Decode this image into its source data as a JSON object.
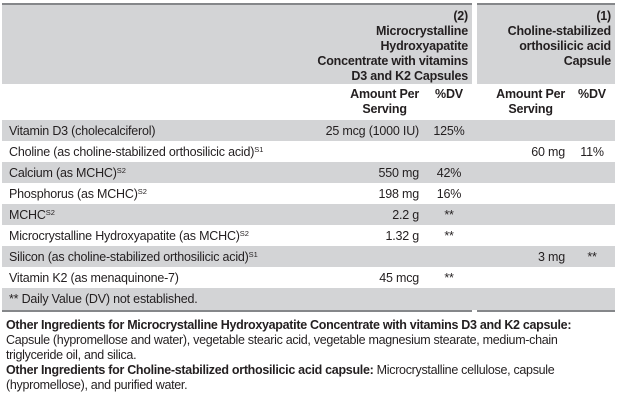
{
  "table": {
    "products": [
      {
        "lines": [
          "(2)",
          "Microcrystalline",
          "Hydroxyapatite",
          "Concentrate with vitamins",
          "D3 and K2 Capsules"
        ]
      },
      {
        "lines": [
          "(1)",
          "Choline-stabilized",
          "orthosilicic acid",
          "Capsule"
        ]
      }
    ],
    "column_headers": {
      "amount_top": "Amount Per",
      "amount_bottom": "Serving",
      "dv": "%DV"
    },
    "rows": [
      {
        "label": "Vitamin D3 (cholecalciferol)",
        "sup": "",
        "amount1": "25 mcg (1000 IU)",
        "dv1": "125%",
        "amount2": "",
        "dv2": ""
      },
      {
        "label": "Choline (as choline-stabilized orthosilicic acid)",
        "sup": "S1",
        "amount1": "",
        "dv1": "",
        "amount2": "60 mg",
        "dv2": "11%"
      },
      {
        "label": "Calcium (as MCHC)",
        "sup": "S2",
        "amount1": "550 mg",
        "dv1": "42%",
        "amount2": "",
        "dv2": ""
      },
      {
        "label": "Phosphorus (as MCHC)",
        "sup": "S2",
        "amount1": "198 mg",
        "dv1": "16%",
        "amount2": "",
        "dv2": ""
      },
      {
        "label": "MCHC",
        "sup": "S2",
        "amount1": "2.2 g",
        "dv1": "**",
        "amount2": "",
        "dv2": ""
      },
      {
        "label": "Microcrystalline Hydroxyapatite (as MCHC)",
        "sup": "S2",
        "amount1": "1.32 g",
        "dv1": "**",
        "amount2": "",
        "dv2": ""
      },
      {
        "label": "Silicon (as choline-stabilized orthosilicic acid)",
        "sup": "S1",
        "amount1": "",
        "dv1": "",
        "amount2": "3 mg",
        "dv2": "**"
      },
      {
        "label": "Vitamin K2 (as menaquinone-7)",
        "sup": "",
        "amount1": "45 mcg",
        "dv1": "**",
        "amount2": "",
        "dv2": ""
      }
    ],
    "footnote": "** Daily Value (DV) not established."
  },
  "other_ingredients": [
    {
      "lead": "Other Ingredients for Microcrystalline Hydroxyapatite Concentrate with vitamins D3 and K2 capsule:",
      "text": "Capsule (hypromellose and water), vegetable stearic acid, vegetable magnesium stearate, medium-chain triglyceride oil, and silica."
    },
    {
      "lead": "Other Ingredients for Choline-stabilized orthosilicic acid capsule:",
      "text": "Microcrystalline cellulose, capsule (hypromellose), and purified water."
    }
  ],
  "colors": {
    "row_shade": "#d3d4d6",
    "rule": "#85878a",
    "text": "#231f20"
  }
}
